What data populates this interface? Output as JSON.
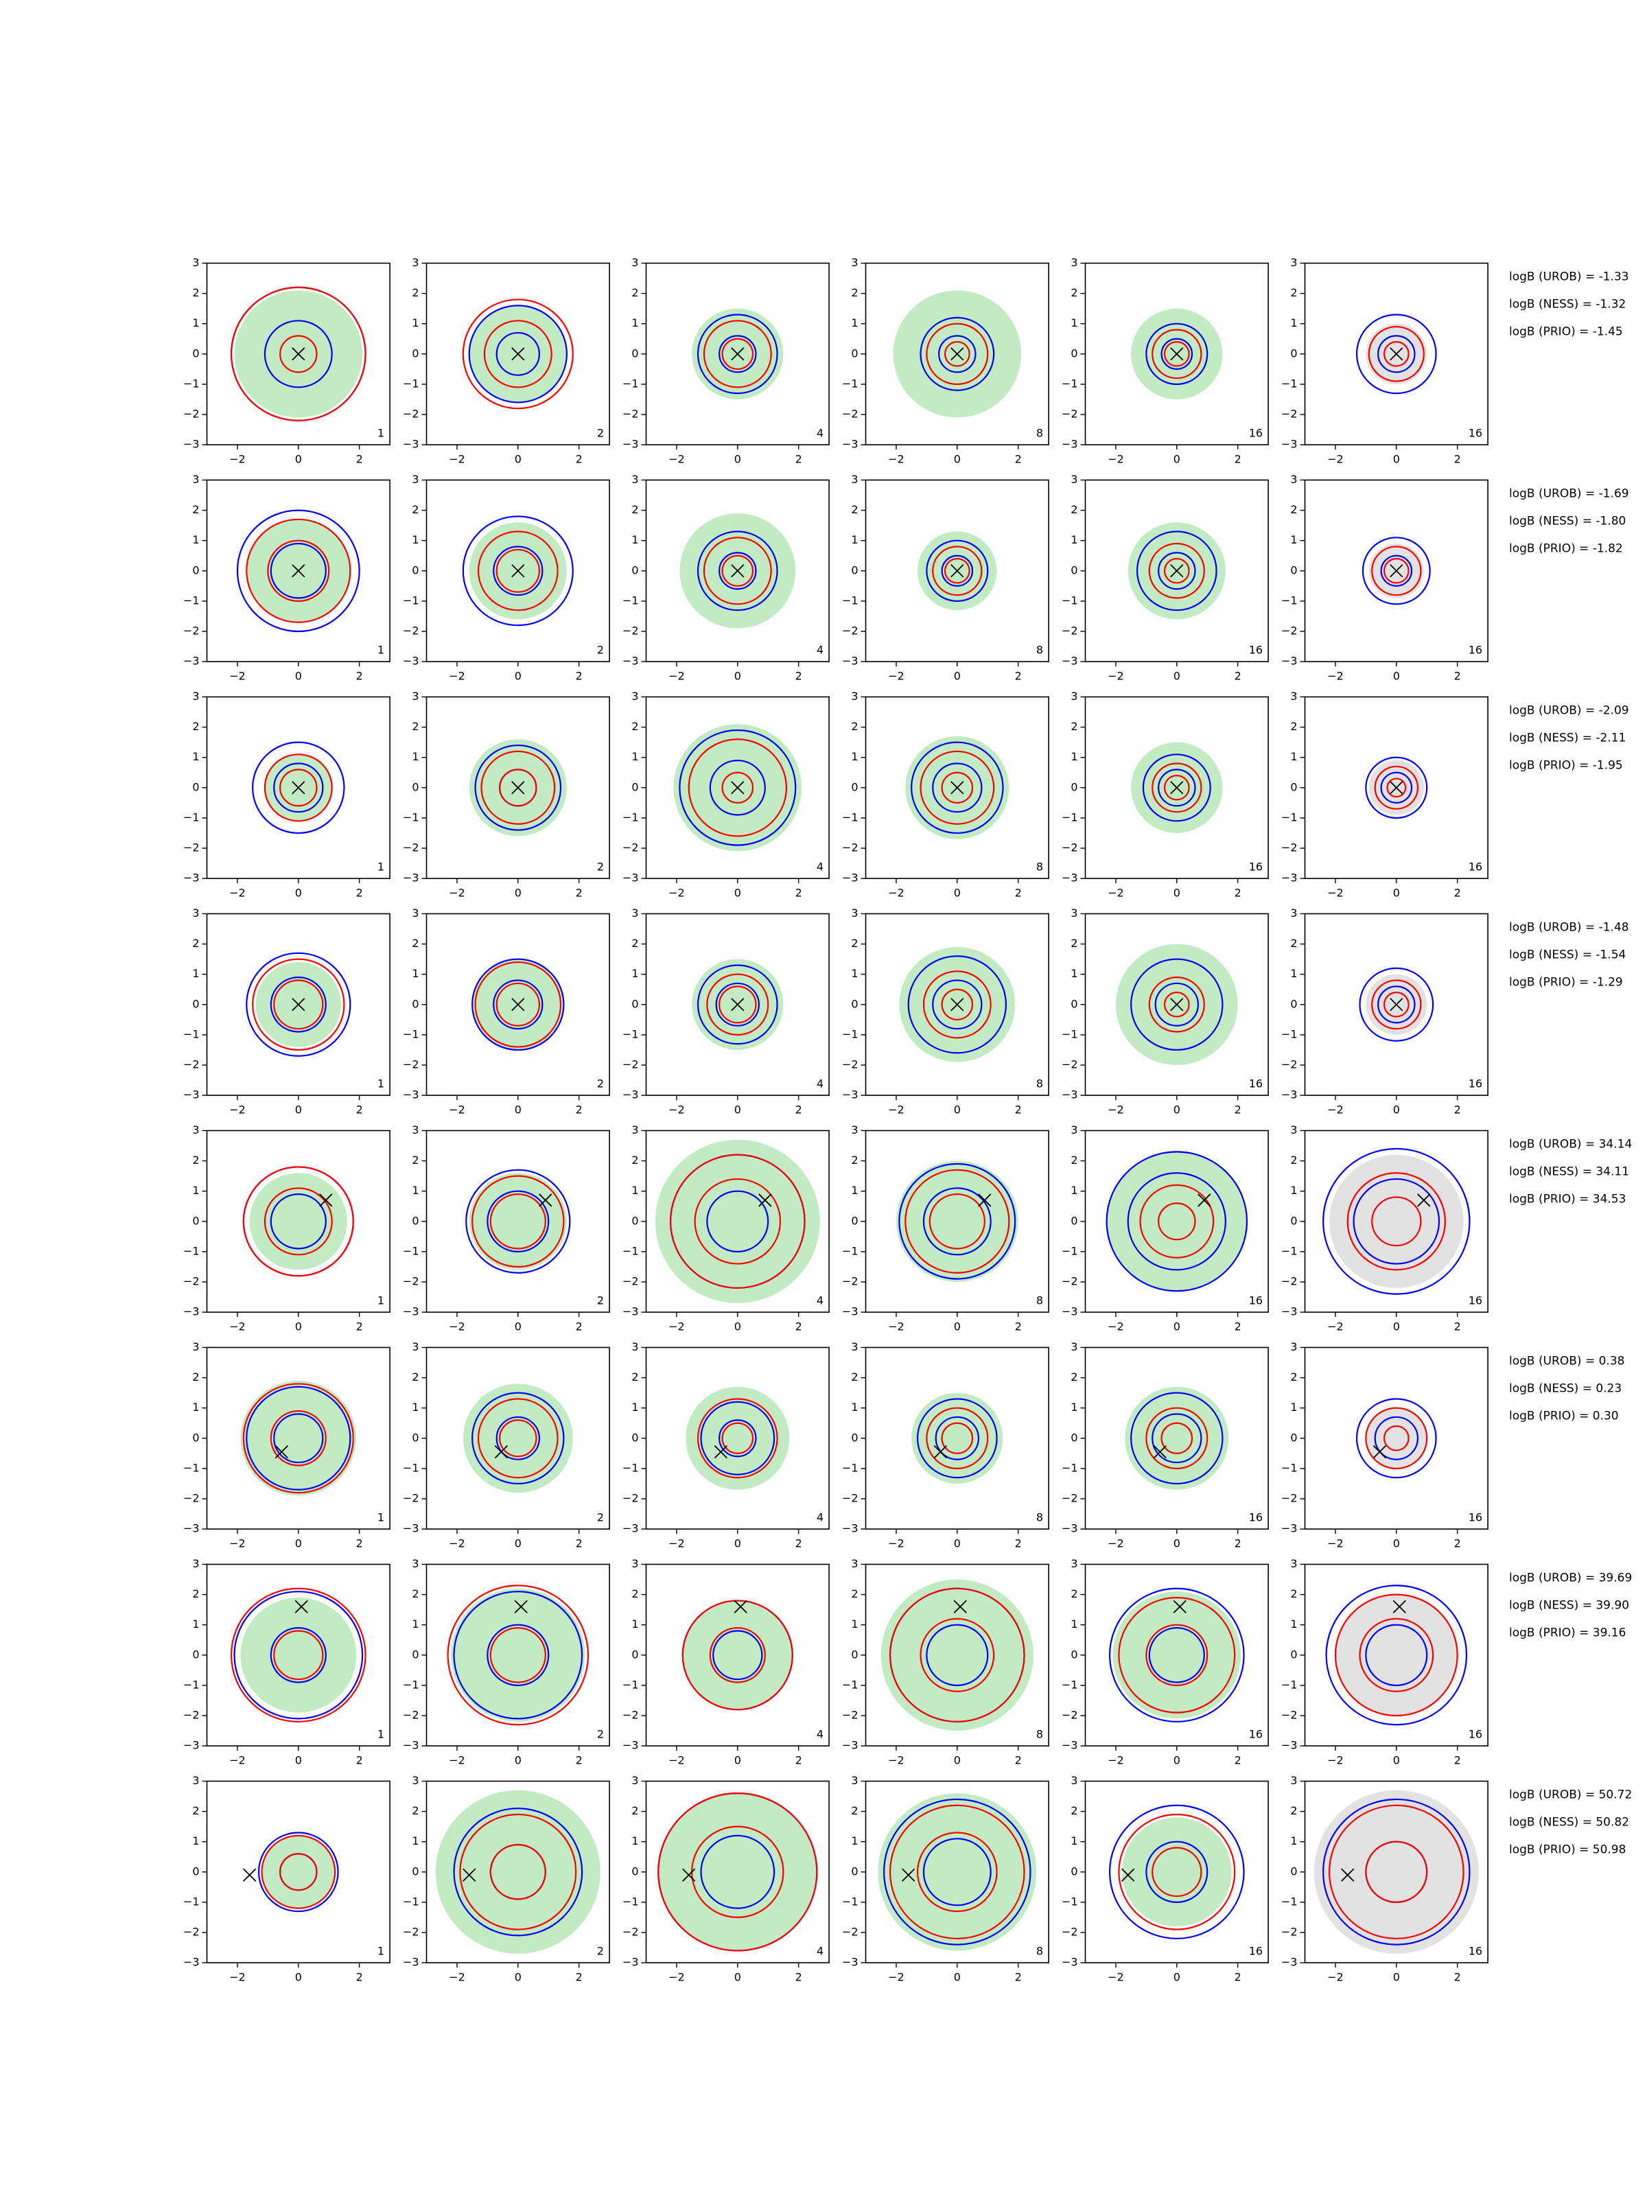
{
  "chart_data": {
    "type": "contour-grid",
    "xlim": [
      -3,
      3
    ],
    "ylim": [
      -3,
      3
    ],
    "xticks": [
      {
        "value": -2,
        "label": "−2"
      },
      0,
      2
    ],
    "yticks": [
      {
        "value": -3,
        "label": "−3"
      },
      {
        "value": -2,
        "label": "−2"
      },
      {
        "value": -1,
        "label": "−1"
      },
      0,
      1,
      2,
      3
    ],
    "panel_labels": [
      "1",
      "2",
      "4",
      "8",
      "16",
      "16"
    ],
    "colors": {
      "fill": "#c3ebc3",
      "fill_last": "#e2e2e2",
      "blue": "#0000ff",
      "red": "#ff0000",
      "marker": "#000000"
    },
    "rows": [
      {
        "marker": [
          0,
          0
        ],
        "logB": [
          "logB (UROB) = -1.33",
          "logB (NESS) = -1.32",
          "logB (PRIO) = -1.45"
        ],
        "panels": [
          {
            "fill": 2.1,
            "blue": [
              2.2,
              1.1
            ],
            "red": [
              2.2,
              0.6
            ]
          },
          {
            "fill": 1.6,
            "blue": [
              1.6,
              0.7
            ],
            "red": [
              1.8,
              1.1
            ]
          },
          {
            "fill": 1.5,
            "blue": [
              1.3,
              0.6
            ],
            "red": [
              1.1,
              0.5
            ]
          },
          {
            "fill": 2.1,
            "blue": [
              1.2,
              0.6
            ],
            "red": [
              1.0,
              0.4
            ]
          },
          {
            "fill": 1.5,
            "blue": [
              1.0,
              0.5
            ],
            "red": [
              0.8,
              0.4
            ]
          },
          {
            "fill": 1.0,
            "blue": [
              1.3,
              0.6
            ],
            "red": [
              0.9,
              0.4
            ]
          }
        ]
      },
      {
        "marker": [
          0,
          0
        ],
        "logB": [
          "logB (UROB) = -1.69",
          "logB (NESS) = -1.80",
          "logB (PRIO) = -1.82"
        ],
        "panels": [
          {
            "fill": 1.7,
            "blue": [
              2.0,
              0.9
            ],
            "red": [
              1.7,
              1.0
            ]
          },
          {
            "fill": 1.6,
            "blue": [
              1.8,
              0.8
            ],
            "red": [
              1.3,
              0.7
            ]
          },
          {
            "fill": 1.9,
            "blue": [
              1.3,
              0.6
            ],
            "red": [
              1.1,
              0.5
            ]
          },
          {
            "fill": 1.3,
            "blue": [
              1.0,
              0.5
            ],
            "red": [
              0.8,
              0.4
            ]
          },
          {
            "fill": 1.6,
            "blue": [
              1.3,
              0.6
            ],
            "red": [
              0.9,
              0.4
            ]
          },
          {
            "fill": 0.9,
            "blue": [
              1.1,
              0.5
            ],
            "red": [
              0.8,
              0.4
            ]
          }
        ]
      },
      {
        "marker": [
          0,
          0
        ],
        "logB": [
          "logB (UROB) = -2.09",
          "logB (NESS) = -2.11",
          "logB (PRIO) = -1.95"
        ],
        "panels": [
          {
            "fill": 1.1,
            "blue": [
              1.5,
              0.8
            ],
            "red": [
              1.1,
              0.6
            ]
          },
          {
            "fill": 1.6,
            "blue": [
              1.4,
              0.6
            ],
            "red": [
              1.2,
              0.6
            ]
          },
          {
            "fill": 2.1,
            "blue": [
              1.9,
              0.9
            ],
            "red": [
              1.6,
              0.5
            ]
          },
          {
            "fill": 1.7,
            "blue": [
              1.5,
              0.8
            ],
            "red": [
              1.2,
              0.5
            ]
          },
          {
            "fill": 1.5,
            "blue": [
              1.1,
              0.6
            ],
            "red": [
              0.8,
              0.4
            ]
          },
          {
            "fill": 0.9,
            "blue": [
              1.0,
              0.5
            ],
            "red": [
              0.7,
              0.3
            ]
          }
        ]
      },
      {
        "marker": [
          0,
          0
        ],
        "logB": [
          "logB (UROB) = -1.48",
          "logB (NESS) = -1.54",
          "logB (PRIO) = -1.29"
        ],
        "panels": [
          {
            "fill": 1.4,
            "blue": [
              1.7,
              0.9
            ],
            "red": [
              1.5,
              0.8
            ]
          },
          {
            "fill": 1.5,
            "blue": [
              1.5,
              0.8
            ],
            "red": [
              1.4,
              0.7
            ]
          },
          {
            "fill": 1.5,
            "blue": [
              1.3,
              0.7
            ],
            "red": [
              1.0,
              0.6
            ]
          },
          {
            "fill": 1.9,
            "blue": [
              1.6,
              0.8
            ],
            "red": [
              1.1,
              0.5
            ]
          },
          {
            "fill": 2.0,
            "blue": [
              1.5,
              0.7
            ],
            "red": [
              0.9,
              0.4
            ]
          },
          {
            "fill": 1.0,
            "blue": [
              1.2,
              0.6
            ],
            "red": [
              0.8,
              0.4
            ]
          }
        ]
      },
      {
        "marker": [
          0.9,
          0.7
        ],
        "logB": [
          "logB (UROB) = 34.14",
          "logB (NESS) = 34.11",
          "logB (PRIO) = 34.53"
        ],
        "panels": [
          {
            "fill": 1.6,
            "blue": [
              1.8,
              0.9
            ],
            "red": [
              1.8,
              1.1
            ]
          },
          {
            "fill": 1.6,
            "blue": [
              1.7,
              1.0
            ],
            "red": [
              1.5,
              0.9
            ]
          },
          {
            "fill": 2.7,
            "blue": [
              2.2,
              1.0
            ],
            "red": [
              2.2,
              1.4
            ]
          },
          {
            "fill": 2.0,
            "blue": [
              1.9,
              1.1
            ],
            "red": [
              1.7,
              0.9
            ]
          },
          {
            "fill": 2.3,
            "blue": [
              2.3,
              1.6
            ],
            "red": [
              1.2,
              0.6
            ]
          },
          {
            "fill": 2.2,
            "blue": [
              2.4,
              1.4
            ],
            "red": [
              1.6,
              0.8
            ]
          }
        ]
      },
      {
        "marker": [
          -0.55,
          -0.45
        ],
        "logB": [
          "logB (UROB) = 0.38",
          "logB (NESS) = 0.23",
          "logB (PRIO) = 0.30"
        ],
        "panels": [
          {
            "fill": 1.9,
            "blue": [
              1.7,
              0.8
            ],
            "red": [
              1.8,
              0.9
            ]
          },
          {
            "fill": 1.8,
            "blue": [
              1.5,
              0.7
            ],
            "red": [
              1.3,
              0.6
            ]
          },
          {
            "fill": 1.7,
            "blue": [
              1.2,
              0.6
            ],
            "red": [
              1.3,
              0.5
            ]
          },
          {
            "fill": 1.5,
            "blue": [
              1.3,
              0.7
            ],
            "red": [
              1.0,
              0.5
            ]
          },
          {
            "fill": 1.7,
            "blue": [
              1.5,
              0.8
            ],
            "red": [
              1.0,
              0.5
            ]
          },
          {
            "fill": 1.0,
            "blue": [
              1.3,
              0.7
            ],
            "red": [
              1.0,
              0.4
            ]
          }
        ]
      },
      {
        "marker": [
          0.1,
          1.6
        ],
        "logB": [
          "logB (UROB) = 39.69",
          "logB (NESS) = 39.90",
          "logB (PRIO) = 39.16"
        ],
        "panels": [
          {
            "fill": 1.9,
            "blue": [
              2.1,
              0.9
            ],
            "red": [
              2.2,
              0.8
            ]
          },
          {
            "fill": 2.2,
            "blue": [
              2.1,
              1.0
            ],
            "red": [
              2.3,
              0.9
            ]
          },
          {
            "fill": 1.8,
            "blue": [
              1.8,
              0.8
            ],
            "red": [
              1.8,
              0.9
            ]
          },
          {
            "fill": 2.5,
            "blue": [
              2.2,
              1.0
            ],
            "red": [
              2.2,
              1.2
            ]
          },
          {
            "fill": 2.1,
            "blue": [
              2.2,
              0.9
            ],
            "red": [
              1.9,
              1.0
            ]
          },
          {
            "fill": 2.0,
            "blue": [
              2.3,
              1.0
            ],
            "red": [
              2.0,
              1.2
            ]
          }
        ]
      },
      {
        "marker": [
          -1.6,
          -0.1
        ],
        "logB": [
          "logB (UROB) = 50.72",
          "logB (NESS) = 50.82",
          "logB (PRIO) = 50.98"
        ],
        "panels": [
          {
            "fill": 1.2,
            "blue": [
              1.3,
              0.6
            ],
            "red": [
              1.2,
              0.6
            ]
          },
          {
            "fill": 2.7,
            "blue": [
              2.1,
              0.9
            ],
            "red": [
              1.9,
              0.9
            ]
          },
          {
            "fill": 2.6,
            "blue": [
              2.6,
              1.2
            ],
            "red": [
              2.6,
              1.5
            ]
          },
          {
            "fill": 2.6,
            "blue": [
              2.4,
              1.1
            ],
            "red": [
              2.2,
              1.3
            ]
          },
          {
            "fill": 1.8,
            "blue": [
              2.2,
              1.0
            ],
            "red": [
              1.9,
              0.8
            ]
          },
          {
            "fill": 2.7,
            "blue": [
              2.4,
              1.0
            ],
            "red": [
              2.2,
              1.0
            ]
          }
        ]
      }
    ]
  }
}
